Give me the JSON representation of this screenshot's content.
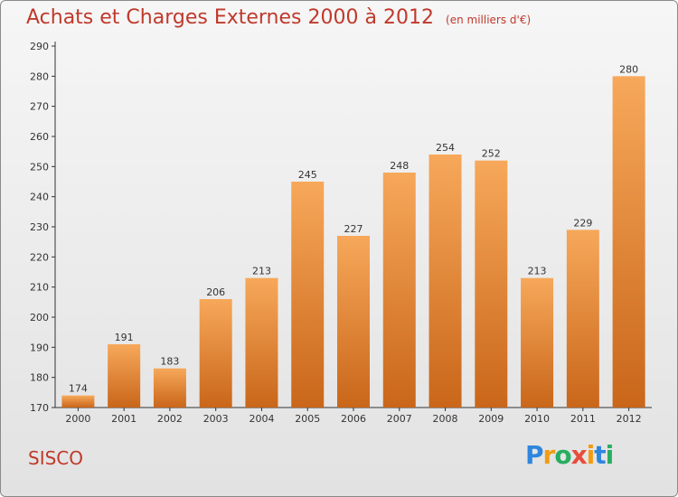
{
  "header": {
    "title": "Achats et Charges Externes 2000 à 2012",
    "unit": "(en milliers d'€)"
  },
  "commune": "SISCO",
  "logo": {
    "text": "Proxiti",
    "letters": [
      "P",
      "r",
      "o",
      "x",
      "i",
      "t",
      "i"
    ],
    "letter_colors": [
      "#2e86de",
      "#f39c12",
      "#27ae60",
      "#e74c3c",
      "#f39c12",
      "#2e86de",
      "#27ae60"
    ]
  },
  "colors": {
    "title": "#c0392b",
    "bar_light": "#f7a85a",
    "bar_dark": "#c9661a",
    "axis": "#333333"
  },
  "chart_data": {
    "type": "bar",
    "title": "Achats et Charges Externes 2000 à 2012",
    "subtitle": "(en milliers d'€)",
    "categories": [
      "2000",
      "2001",
      "2002",
      "2003",
      "2004",
      "2005",
      "2006",
      "2007",
      "2008",
      "2009",
      "2010",
      "2011",
      "2012"
    ],
    "values": [
      174,
      191,
      183,
      206,
      213,
      245,
      227,
      248,
      254,
      252,
      213,
      229,
      280
    ],
    "ylim": [
      170,
      290
    ],
    "yticks": [
      170,
      180,
      190,
      200,
      210,
      220,
      230,
      240,
      250,
      260,
      270,
      280,
      290
    ],
    "grid": false,
    "data_labels": true
  }
}
